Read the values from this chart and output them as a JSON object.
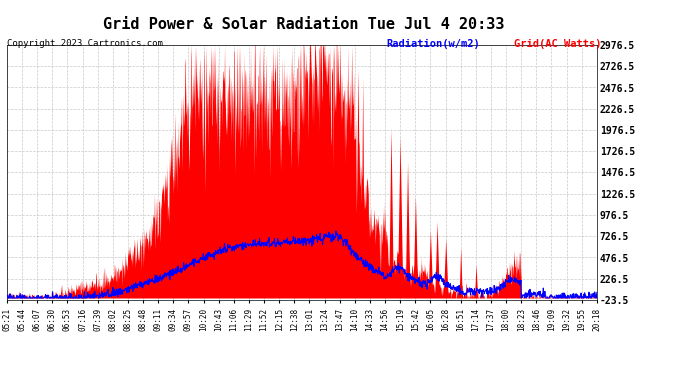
{
  "title": "Grid Power & Solar Radiation Tue Jul 4 20:33",
  "copyright": "Copyright 2023 Cartronics.com",
  "legend_radiation": "Radiation(w/m2)",
  "legend_grid": "Grid(AC Watts)",
  "yticks": [
    -23.5,
    226.5,
    476.5,
    726.5,
    976.5,
    1226.5,
    1476.5,
    1726.5,
    1976.5,
    2226.5,
    2476.5,
    2726.5,
    2976.5
  ],
  "ymin": -23.5,
  "ymax": 2976.5,
  "background_color": "#ffffff",
  "plot_bg_color": "#ffffff",
  "grid_color": "#bbbbbb",
  "radiation_fill_color": "#ff0000",
  "grid_line_color": "#0000ff",
  "xtick_labels": [
    "05:21",
    "05:44",
    "06:07",
    "06:30",
    "06:53",
    "07:16",
    "07:39",
    "08:02",
    "08:25",
    "08:48",
    "09:11",
    "09:34",
    "09:57",
    "10:20",
    "10:43",
    "11:06",
    "11:29",
    "11:52",
    "12:15",
    "12:38",
    "13:01",
    "13:24",
    "13:47",
    "14:10",
    "14:33",
    "14:56",
    "15:19",
    "15:42",
    "16:05",
    "16:28",
    "16:51",
    "17:14",
    "17:37",
    "18:00",
    "18:23",
    "18:46",
    "19:09",
    "19:32",
    "19:55",
    "20:18"
  ]
}
